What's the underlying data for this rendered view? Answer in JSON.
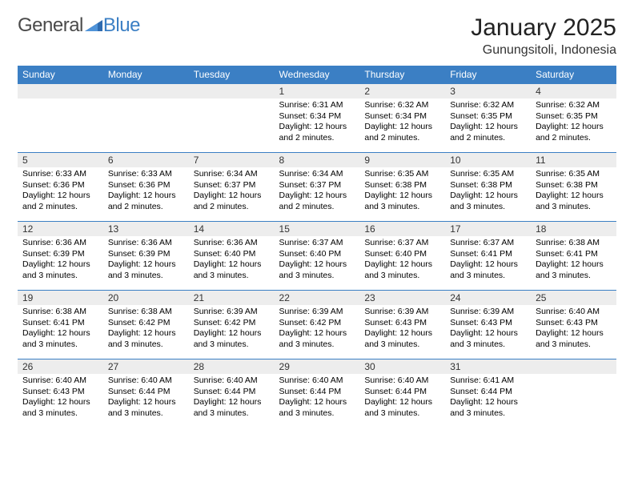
{
  "brand": {
    "word1": "General",
    "word2": "Blue",
    "word1_color": "#5a5a5a",
    "word2_color": "#3b7fc4"
  },
  "title": "January 2025",
  "location": "Gunungsitoli, Indonesia",
  "header_bg": "#3b7fc4",
  "header_text_color": "#ffffff",
  "daynum_bg": "#ededed",
  "cell_border_color": "#3b7fc4",
  "font_family": "Arial",
  "weekdays": [
    "Sunday",
    "Monday",
    "Tuesday",
    "Wednesday",
    "Thursday",
    "Friday",
    "Saturday"
  ],
  "weeks": [
    [
      {
        "empty": true
      },
      {
        "empty": true
      },
      {
        "empty": true
      },
      {
        "day": "1",
        "sunrise": "Sunrise: 6:31 AM",
        "sunset": "Sunset: 6:34 PM",
        "daylight": "Daylight: 12 hours and 2 minutes."
      },
      {
        "day": "2",
        "sunrise": "Sunrise: 6:32 AM",
        "sunset": "Sunset: 6:34 PM",
        "daylight": "Daylight: 12 hours and 2 minutes."
      },
      {
        "day": "3",
        "sunrise": "Sunrise: 6:32 AM",
        "sunset": "Sunset: 6:35 PM",
        "daylight": "Daylight: 12 hours and 2 minutes."
      },
      {
        "day": "4",
        "sunrise": "Sunrise: 6:32 AM",
        "sunset": "Sunset: 6:35 PM",
        "daylight": "Daylight: 12 hours and 2 minutes."
      }
    ],
    [
      {
        "day": "5",
        "sunrise": "Sunrise: 6:33 AM",
        "sunset": "Sunset: 6:36 PM",
        "daylight": "Daylight: 12 hours and 2 minutes."
      },
      {
        "day": "6",
        "sunrise": "Sunrise: 6:33 AM",
        "sunset": "Sunset: 6:36 PM",
        "daylight": "Daylight: 12 hours and 2 minutes."
      },
      {
        "day": "7",
        "sunrise": "Sunrise: 6:34 AM",
        "sunset": "Sunset: 6:37 PM",
        "daylight": "Daylight: 12 hours and 2 minutes."
      },
      {
        "day": "8",
        "sunrise": "Sunrise: 6:34 AM",
        "sunset": "Sunset: 6:37 PM",
        "daylight": "Daylight: 12 hours and 2 minutes."
      },
      {
        "day": "9",
        "sunrise": "Sunrise: 6:35 AM",
        "sunset": "Sunset: 6:38 PM",
        "daylight": "Daylight: 12 hours and 3 minutes."
      },
      {
        "day": "10",
        "sunrise": "Sunrise: 6:35 AM",
        "sunset": "Sunset: 6:38 PM",
        "daylight": "Daylight: 12 hours and 3 minutes."
      },
      {
        "day": "11",
        "sunrise": "Sunrise: 6:35 AM",
        "sunset": "Sunset: 6:38 PM",
        "daylight": "Daylight: 12 hours and 3 minutes."
      }
    ],
    [
      {
        "day": "12",
        "sunrise": "Sunrise: 6:36 AM",
        "sunset": "Sunset: 6:39 PM",
        "daylight": "Daylight: 12 hours and 3 minutes."
      },
      {
        "day": "13",
        "sunrise": "Sunrise: 6:36 AM",
        "sunset": "Sunset: 6:39 PM",
        "daylight": "Daylight: 12 hours and 3 minutes."
      },
      {
        "day": "14",
        "sunrise": "Sunrise: 6:36 AM",
        "sunset": "Sunset: 6:40 PM",
        "daylight": "Daylight: 12 hours and 3 minutes."
      },
      {
        "day": "15",
        "sunrise": "Sunrise: 6:37 AM",
        "sunset": "Sunset: 6:40 PM",
        "daylight": "Daylight: 12 hours and 3 minutes."
      },
      {
        "day": "16",
        "sunrise": "Sunrise: 6:37 AM",
        "sunset": "Sunset: 6:40 PM",
        "daylight": "Daylight: 12 hours and 3 minutes."
      },
      {
        "day": "17",
        "sunrise": "Sunrise: 6:37 AM",
        "sunset": "Sunset: 6:41 PM",
        "daylight": "Daylight: 12 hours and 3 minutes."
      },
      {
        "day": "18",
        "sunrise": "Sunrise: 6:38 AM",
        "sunset": "Sunset: 6:41 PM",
        "daylight": "Daylight: 12 hours and 3 minutes."
      }
    ],
    [
      {
        "day": "19",
        "sunrise": "Sunrise: 6:38 AM",
        "sunset": "Sunset: 6:41 PM",
        "daylight": "Daylight: 12 hours and 3 minutes."
      },
      {
        "day": "20",
        "sunrise": "Sunrise: 6:38 AM",
        "sunset": "Sunset: 6:42 PM",
        "daylight": "Daylight: 12 hours and 3 minutes."
      },
      {
        "day": "21",
        "sunrise": "Sunrise: 6:39 AM",
        "sunset": "Sunset: 6:42 PM",
        "daylight": "Daylight: 12 hours and 3 minutes."
      },
      {
        "day": "22",
        "sunrise": "Sunrise: 6:39 AM",
        "sunset": "Sunset: 6:42 PM",
        "daylight": "Daylight: 12 hours and 3 minutes."
      },
      {
        "day": "23",
        "sunrise": "Sunrise: 6:39 AM",
        "sunset": "Sunset: 6:43 PM",
        "daylight": "Daylight: 12 hours and 3 minutes."
      },
      {
        "day": "24",
        "sunrise": "Sunrise: 6:39 AM",
        "sunset": "Sunset: 6:43 PM",
        "daylight": "Daylight: 12 hours and 3 minutes."
      },
      {
        "day": "25",
        "sunrise": "Sunrise: 6:40 AM",
        "sunset": "Sunset: 6:43 PM",
        "daylight": "Daylight: 12 hours and 3 minutes."
      }
    ],
    [
      {
        "day": "26",
        "sunrise": "Sunrise: 6:40 AM",
        "sunset": "Sunset: 6:43 PM",
        "daylight": "Daylight: 12 hours and 3 minutes."
      },
      {
        "day": "27",
        "sunrise": "Sunrise: 6:40 AM",
        "sunset": "Sunset: 6:44 PM",
        "daylight": "Daylight: 12 hours and 3 minutes."
      },
      {
        "day": "28",
        "sunrise": "Sunrise: 6:40 AM",
        "sunset": "Sunset: 6:44 PM",
        "daylight": "Daylight: 12 hours and 3 minutes."
      },
      {
        "day": "29",
        "sunrise": "Sunrise: 6:40 AM",
        "sunset": "Sunset: 6:44 PM",
        "daylight": "Daylight: 12 hours and 3 minutes."
      },
      {
        "day": "30",
        "sunrise": "Sunrise: 6:40 AM",
        "sunset": "Sunset: 6:44 PM",
        "daylight": "Daylight: 12 hours and 3 minutes."
      },
      {
        "day": "31",
        "sunrise": "Sunrise: 6:41 AM",
        "sunset": "Sunset: 6:44 PM",
        "daylight": "Daylight: 12 hours and 3 minutes."
      },
      {
        "empty": true
      }
    ]
  ]
}
